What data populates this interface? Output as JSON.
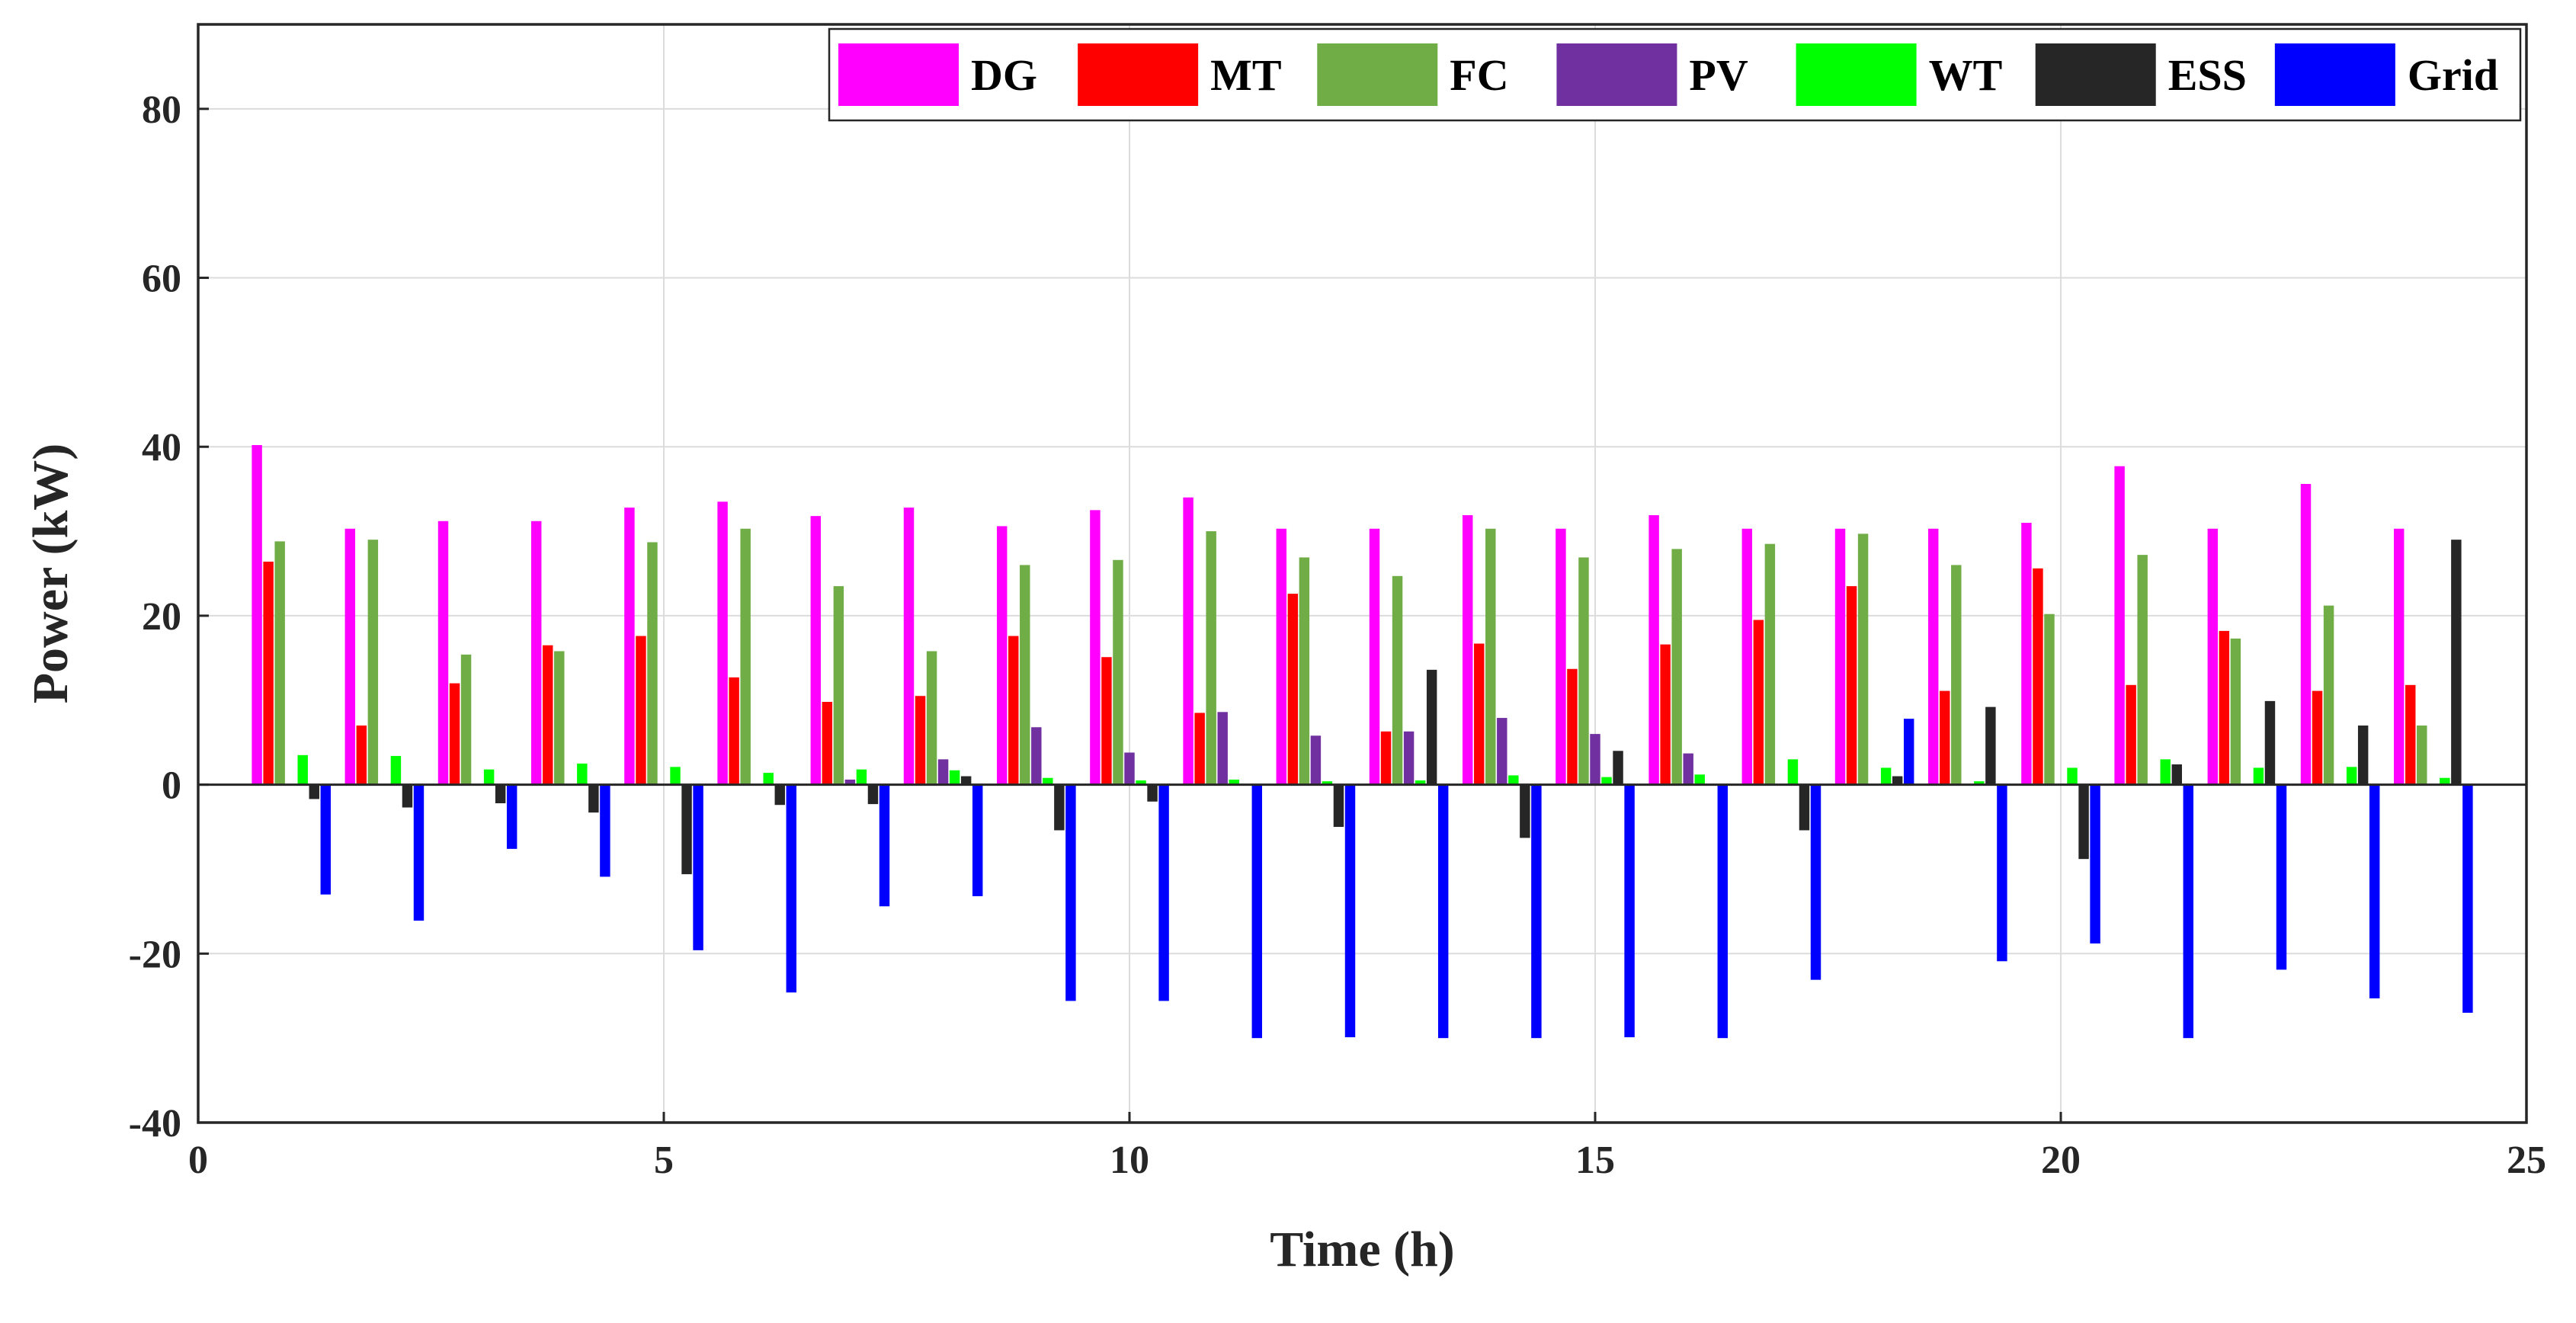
{
  "chart_data": {
    "type": "bar",
    "title": "",
    "xlabel": "Time (h)",
    "ylabel": "Power (kW)",
    "xlim": [
      0,
      25
    ],
    "ylim": [
      -40,
      90
    ],
    "xticks": [
      0,
      5,
      10,
      15,
      20,
      25
    ],
    "yticks": [
      -40,
      -20,
      0,
      20,
      40,
      60,
      80
    ],
    "grid": true,
    "legend_position": "top-right",
    "categories": [
      1,
      2,
      3,
      4,
      5,
      6,
      7,
      8,
      9,
      10,
      11,
      12,
      13,
      14,
      15,
      16,
      17,
      18,
      19,
      20,
      21,
      22,
      23,
      24
    ],
    "series": [
      {
        "name": "DG",
        "color": "#FF00FF",
        "values": [
          40.2,
          30.3,
          31.2,
          31.2,
          32.8,
          33.5,
          31.8,
          32.8,
          30.6,
          32.5,
          34.0,
          30.3,
          30.3,
          31.9,
          30.3,
          31.9,
          30.3,
          30.3,
          30.3,
          31.0,
          37.7,
          30.3,
          35.6,
          30.3
        ]
      },
      {
        "name": "MT",
        "color": "#FF0000",
        "values": [
          26.4,
          7.0,
          12.0,
          16.5,
          17.6,
          12.7,
          9.8,
          10.5,
          17.6,
          15.1,
          8.5,
          22.6,
          6.3,
          16.7,
          13.7,
          16.6,
          19.5,
          23.5,
          11.1,
          25.6,
          11.8,
          18.2,
          11.1,
          11.8
        ]
      },
      {
        "name": "FC",
        "color": "#70AD47",
        "values": [
          28.8,
          29.0,
          15.4,
          15.8,
          28.7,
          30.3,
          23.5,
          15.8,
          26.0,
          26.6,
          30.0,
          26.9,
          24.7,
          30.3,
          26.9,
          27.9,
          28.5,
          29.7,
          26.0,
          20.2,
          27.2,
          17.3,
          21.2,
          7.0
        ]
      },
      {
        "name": "PV",
        "color": "#7030A0",
        "values": [
          0,
          0,
          0,
          0,
          0,
          0,
          0.6,
          3.0,
          6.8,
          3.8,
          8.6,
          5.8,
          6.3,
          7.9,
          6.0,
          3.7,
          0,
          0,
          0,
          0,
          0,
          0,
          0,
          0
        ]
      },
      {
        "name": "WT",
        "color": "#00FF00",
        "values": [
          3.5,
          3.4,
          1.8,
          2.5,
          2.1,
          1.4,
          1.8,
          1.7,
          0.8,
          0.5,
          0.6,
          0.4,
          0.5,
          1.1,
          0.9,
          1.2,
          3.0,
          2.0,
          0.4,
          2.0,
          3.0,
          2.0,
          2.1,
          0.8
        ]
      },
      {
        "name": "ESS",
        "color": "#262626",
        "values": [
          -1.7,
          -2.7,
          -2.2,
          -3.3,
          -10.6,
          -2.4,
          -2.3,
          1.0,
          -5.4,
          -2.0,
          0,
          -5.0,
          13.6,
          -6.3,
          4.0,
          0,
          -5.4,
          1.0,
          9.2,
          -8.8,
          2.4,
          9.9,
          7.0,
          29.0
        ]
      },
      {
        "name": "Grid",
        "color": "#0000FF",
        "values": [
          -13.0,
          -16.1,
          -7.6,
          -10.9,
          -19.6,
          -24.6,
          -14.4,
          -13.2,
          -25.6,
          -25.6,
          -30.0,
          -29.9,
          -30.0,
          -30.0,
          -29.9,
          -30.0,
          -23.1,
          7.8,
          -20.9,
          -18.8,
          -30.0,
          -21.9,
          -25.3,
          -27.0
        ]
      }
    ]
  }
}
